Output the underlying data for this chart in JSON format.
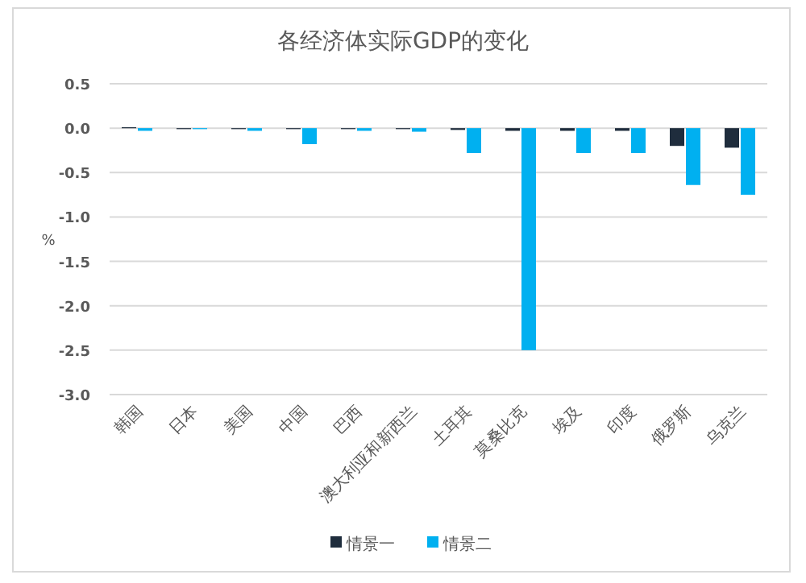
{
  "chart_data": {
    "type": "bar",
    "title": "各经济体实际GDP的变化",
    "ylabel": "%",
    "categories": [
      "韩国",
      "日本",
      "美国",
      "中国",
      "巴西",
      "澳大利亚和新西兰",
      "土耳其",
      "莫桑比克",
      "埃及",
      "印度",
      "俄罗斯",
      "乌克兰"
    ],
    "series": [
      {
        "name": "情景一",
        "color": "#1f2d3d",
        "values": [
          0.01,
          -0.01,
          -0.01,
          -0.01,
          -0.01,
          -0.01,
          -0.02,
          -0.03,
          -0.03,
          -0.03,
          -0.2,
          -0.22
        ]
      },
      {
        "name": "情景二",
        "color": "#00b0f0",
        "values": [
          -0.03,
          -0.01,
          -0.03,
          -0.18,
          -0.03,
          -0.04,
          -0.28,
          -2.5,
          -0.28,
          -0.28,
          -0.64,
          -0.75
        ]
      }
    ],
    "ylim": [
      -3.0,
      0.5
    ],
    "yticks": [
      {
        "value": 0.5,
        "label": "0.5"
      },
      {
        "value": 0,
        "label": "0.0"
      },
      {
        "value": -0.5,
        "label": "-0.5"
      },
      {
        "value": -1,
        "label": "-1.0"
      },
      {
        "value": -1.5,
        "label": "-1.5"
      },
      {
        "value": -2,
        "label": "-2.0"
      },
      {
        "value": -2.5,
        "label": "-2.5"
      },
      {
        "value": -3,
        "label": "-3.0"
      }
    ],
    "grid": "y",
    "legend": "bottom"
  }
}
